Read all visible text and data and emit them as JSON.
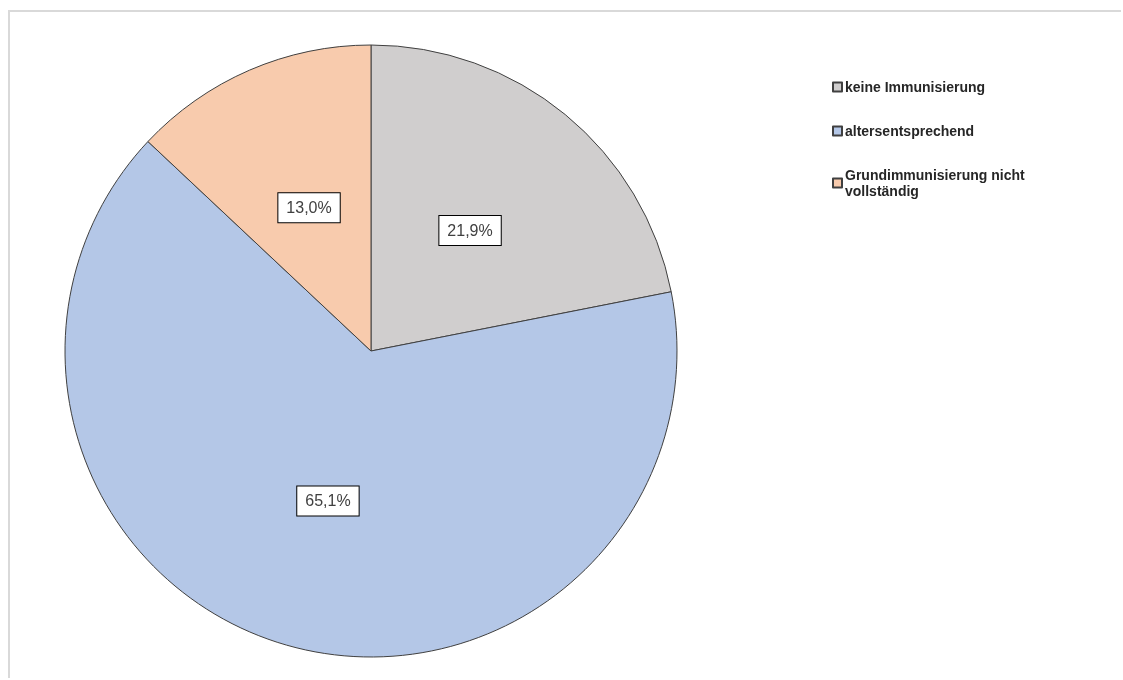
{
  "chart_data": {
    "type": "pie",
    "categories": [
      "keine Immunisierung",
      "altersentsprechend",
      "Grundimmunisierung nicht vollständig"
    ],
    "values": [
      21.9,
      65.1,
      13.0
    ],
    "colors": [
      "#d0cece",
      "#b4c7e7",
      "#f8cbad"
    ],
    "value_labels": [
      "21,9%",
      "65,1%",
      "13,0%"
    ],
    "legend": "top right"
  }
}
